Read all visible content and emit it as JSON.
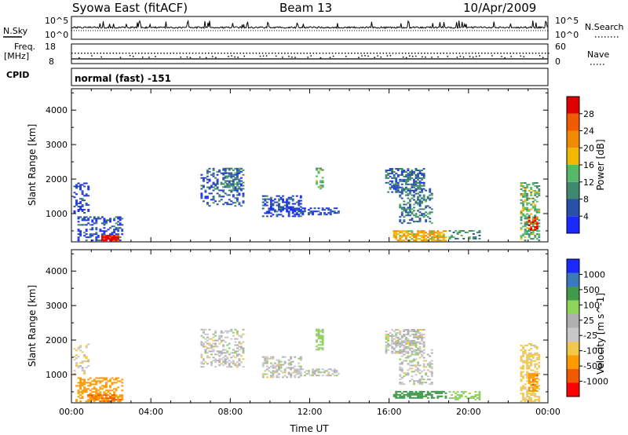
{
  "header": {
    "station": "Syowa East (fitACF)",
    "beam": "Beam 13",
    "date": "10/Apr/2009"
  },
  "noise_panel": {
    "left_label": "N.Sky",
    "right_label": "N.Search",
    "left_ticks": [
      "10^5",
      "10^0"
    ],
    "right_ticks": [
      "10^5",
      "10^0"
    ]
  },
  "freq_panel": {
    "left_label_1": "Freq.",
    "left_label_2": "[MHz]",
    "right_label": "Nave",
    "left_ticks": [
      "18",
      "8"
    ],
    "right_ticks": [
      "60",
      "0"
    ]
  },
  "cpid": {
    "label": "CPID",
    "value": "normal (fast) -151"
  },
  "colors": {
    "power_scale": [
      "#1a2aff",
      "#2a4fa8",
      "#3f8a6e",
      "#57b86a",
      "#f2b700",
      "#f08a00",
      "#f05a00",
      "#e00000"
    ],
    "velocity_scale": [
      "#ff0000",
      "#f05a00",
      "#ff9a00",
      "#f2c84a",
      "#c8c8c8",
      "#b0b0b0",
      "#8fd45a",
      "#3f9a4a",
      "#3a7ab8",
      "#1a2aff"
    ]
  },
  "chart_data": [
    {
      "type": "heatmap",
      "title": "",
      "xlabel": "Time UT",
      "ylabel": "Slant Range [km]",
      "xlim": [
        "00:00",
        "24:00"
      ],
      "ylim": [
        180,
        4620
      ],
      "x_ticks": [
        "00:00",
        "04:00",
        "08:00",
        "12:00",
        "16:00",
        "20:00",
        "00:00"
      ],
      "y_ticks": [
        "1000",
        "2000",
        "3000",
        "4000"
      ],
      "colorbar": {
        "label": "Power [dB]",
        "ticks": [
          "4",
          "8",
          "12",
          "16",
          "20",
          "24",
          "28"
        ],
        "range": [
          0,
          30
        ]
      },
      "clusters": [
        {
          "t_start": 0.1,
          "t_end": 0.8,
          "r_min": 1000,
          "r_max": 1900,
          "level": 4,
          "density": 0.35
        },
        {
          "t_start": 0.3,
          "t_end": 2.6,
          "r_min": 200,
          "r_max": 900,
          "level": 5,
          "density": 0.45
        },
        {
          "t_start": 1.5,
          "t_end": 2.4,
          "r_min": 200,
          "r_max": 380,
          "level": 28,
          "density": 0.9
        },
        {
          "t_start": 6.5,
          "t_end": 8.6,
          "r_min": 1200,
          "r_max": 2300,
          "level": 6,
          "density": 0.35
        },
        {
          "t_start": 7.6,
          "t_end": 8.4,
          "r_min": 1700,
          "r_max": 2300,
          "level": 9,
          "density": 0.5
        },
        {
          "t_start": 9.6,
          "t_end": 11.5,
          "r_min": 900,
          "r_max": 1500,
          "level": 5,
          "density": 0.5
        },
        {
          "t_start": 11.2,
          "t_end": 13.4,
          "r_min": 950,
          "r_max": 1150,
          "level": 5,
          "density": 0.5
        },
        {
          "t_start": 12.3,
          "t_end": 12.7,
          "r_min": 1700,
          "r_max": 2300,
          "level": 12,
          "density": 0.6
        },
        {
          "t_start": 15.8,
          "t_end": 17.8,
          "r_min": 1600,
          "r_max": 2300,
          "level": 7,
          "density": 0.55
        },
        {
          "t_start": 16.5,
          "t_end": 18.2,
          "r_min": 700,
          "r_max": 1700,
          "level": 8,
          "density": 0.4
        },
        {
          "t_start": 16.2,
          "t_end": 18.9,
          "r_min": 200,
          "r_max": 500,
          "level": 18,
          "density": 0.7
        },
        {
          "t_start": 19.0,
          "t_end": 20.6,
          "r_min": 250,
          "r_max": 500,
          "level": 10,
          "density": 0.35
        },
        {
          "t_start": 22.6,
          "t_end": 23.6,
          "r_min": 200,
          "r_max": 1900,
          "level": 12,
          "density": 0.5
        },
        {
          "t_start": 23.0,
          "t_end": 23.5,
          "r_min": 500,
          "r_max": 900,
          "level": 26,
          "density": 0.7
        }
      ]
    },
    {
      "type": "heatmap",
      "title": "",
      "xlabel": "Time UT",
      "ylabel": "Slant Range [km]",
      "xlim": [
        "00:00",
        "24:00"
      ],
      "ylim": [
        180,
        4620
      ],
      "x_ticks": [
        "00:00",
        "04:00",
        "08:00",
        "12:00",
        "16:00",
        "20:00",
        "00:00"
      ],
      "y_ticks": [
        "1000",
        "2000",
        "3000",
        "4000"
      ],
      "colorbar": {
        "label": "Velocity [m s^-1]",
        "ticks": [
          "1000",
          "500",
          "100",
          "25",
          "-25",
          "-100",
          "-500",
          "-1000"
        ]
      },
      "clusters": [
        {
          "t_start": 0.1,
          "t_end": 0.8,
          "r_min": 1000,
          "r_max": 1900,
          "level": -20,
          "density": 0.3
        },
        {
          "t_start": 0.2,
          "t_end": 2.6,
          "r_min": 200,
          "r_max": 900,
          "level": -300,
          "density": 0.45
        },
        {
          "t_start": 0.8,
          "t_end": 2.5,
          "r_min": 200,
          "r_max": 400,
          "level": -500,
          "density": 0.85
        },
        {
          "t_start": 6.5,
          "t_end": 8.6,
          "r_min": 1200,
          "r_max": 2300,
          "level": 0,
          "density": 0.35
        },
        {
          "t_start": 9.6,
          "t_end": 11.5,
          "r_min": 900,
          "r_max": 1500,
          "level": 0,
          "density": 0.45
        },
        {
          "t_start": 11.2,
          "t_end": 13.4,
          "r_min": 950,
          "r_max": 1150,
          "level": 0,
          "density": 0.45
        },
        {
          "t_start": 12.3,
          "t_end": 12.7,
          "r_min": 1700,
          "r_max": 2300,
          "level": 50,
          "density": 0.6
        },
        {
          "t_start": 15.8,
          "t_end": 17.8,
          "r_min": 1600,
          "r_max": 2300,
          "level": 0,
          "density": 0.6
        },
        {
          "t_start": 16.5,
          "t_end": 18.2,
          "r_min": 700,
          "r_max": 1700,
          "level": 0,
          "density": 0.4
        },
        {
          "t_start": 16.2,
          "t_end": 18.9,
          "r_min": 300,
          "r_max": 500,
          "level": 200,
          "density": 0.6
        },
        {
          "t_start": 19.0,
          "t_end": 20.6,
          "r_min": 250,
          "r_max": 500,
          "level": 50,
          "density": 0.35
        },
        {
          "t_start": 22.6,
          "t_end": 23.6,
          "r_min": 200,
          "r_max": 1900,
          "level": -50,
          "density": 0.5
        },
        {
          "t_start": 23.0,
          "t_end": 23.5,
          "r_min": 500,
          "r_max": 1000,
          "level": -400,
          "density": 0.7
        }
      ]
    }
  ]
}
